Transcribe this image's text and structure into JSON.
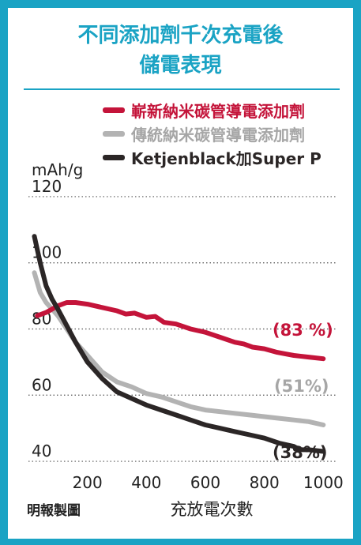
{
  "title_line1": "不同添加劑千次充電後",
  "title_line2": "儲電表現",
  "ylabel": "mAh/g",
  "credit": "明報製圖",
  "colors": {
    "frame": "#1aa3c4",
    "red": "#c4143a",
    "gray": "#b3b3b3",
    "black": "#2b2626"
  },
  "chart_data": {
    "type": "line",
    "title": "不同添加劑千次充電後儲電表現",
    "xlabel": "充放電次數",
    "ylabel": "mAh/g",
    "xlim": [
      0,
      1050
    ],
    "ylim": [
      35,
      125
    ],
    "xticks": [
      200,
      400,
      600,
      800,
      1000
    ],
    "yticks": [
      40,
      60,
      80,
      100,
      120
    ],
    "grid": "horizontal dotted",
    "legend_position": "top",
    "series": [
      {
        "name": "嶄新納米碳管導電添加劑",
        "color": "#c4143a",
        "end_label": "(83 %)",
        "x": [
          30,
          60,
          80,
          100,
          130,
          160,
          200,
          250,
          300,
          330,
          360,
          400,
          430,
          460,
          500,
          550,
          600,
          650,
          700,
          730,
          760,
          800,
          840,
          870,
          900,
          950,
          1000
        ],
        "y": [
          84,
          85,
          86,
          87,
          88,
          88,
          87.5,
          86.5,
          85.5,
          84.5,
          84.8,
          83.5,
          83.8,
          82,
          81.5,
          80,
          79,
          77.5,
          76,
          75.5,
          74.5,
          74,
          73,
          72.5,
          72,
          71.5,
          71
        ]
      },
      {
        "name": "傳統納米碳管導電添加劑",
        "color": "#b3b3b3",
        "end_label": "(51%)",
        "x": [
          20,
          40,
          60,
          80,
          100,
          130,
          160,
          200,
          250,
          300,
          350,
          400,
          450,
          500,
          550,
          600,
          650,
          700,
          750,
          800,
          850,
          900,
          950,
          1000
        ],
        "y": [
          97,
          91,
          88,
          86,
          84,
          80,
          76,
          72,
          67,
          64,
          62.5,
          60.5,
          59.5,
          58,
          56.5,
          55.5,
          55,
          54.5,
          54,
          53.5,
          53,
          52.5,
          52,
          51
        ]
      },
      {
        "name": "Ketjenblack加Super P",
        "color": "#2b2626",
        "end_label": "(38%)",
        "x": [
          20,
          40,
          60,
          80,
          100,
          130,
          160,
          200,
          250,
          300,
          350,
          400,
          450,
          500,
          550,
          600,
          650,
          700,
          750,
          800,
          850,
          900,
          920,
          950,
          1000
        ],
        "y": [
          108,
          100,
          93,
          89,
          86,
          81,
          76,
          70,
          65,
          61,
          59,
          57,
          55.5,
          54,
          52.5,
          51,
          50,
          49,
          48,
          47,
          45.5,
          44.5,
          43.5,
          43.5,
          43
        ]
      }
    ]
  }
}
